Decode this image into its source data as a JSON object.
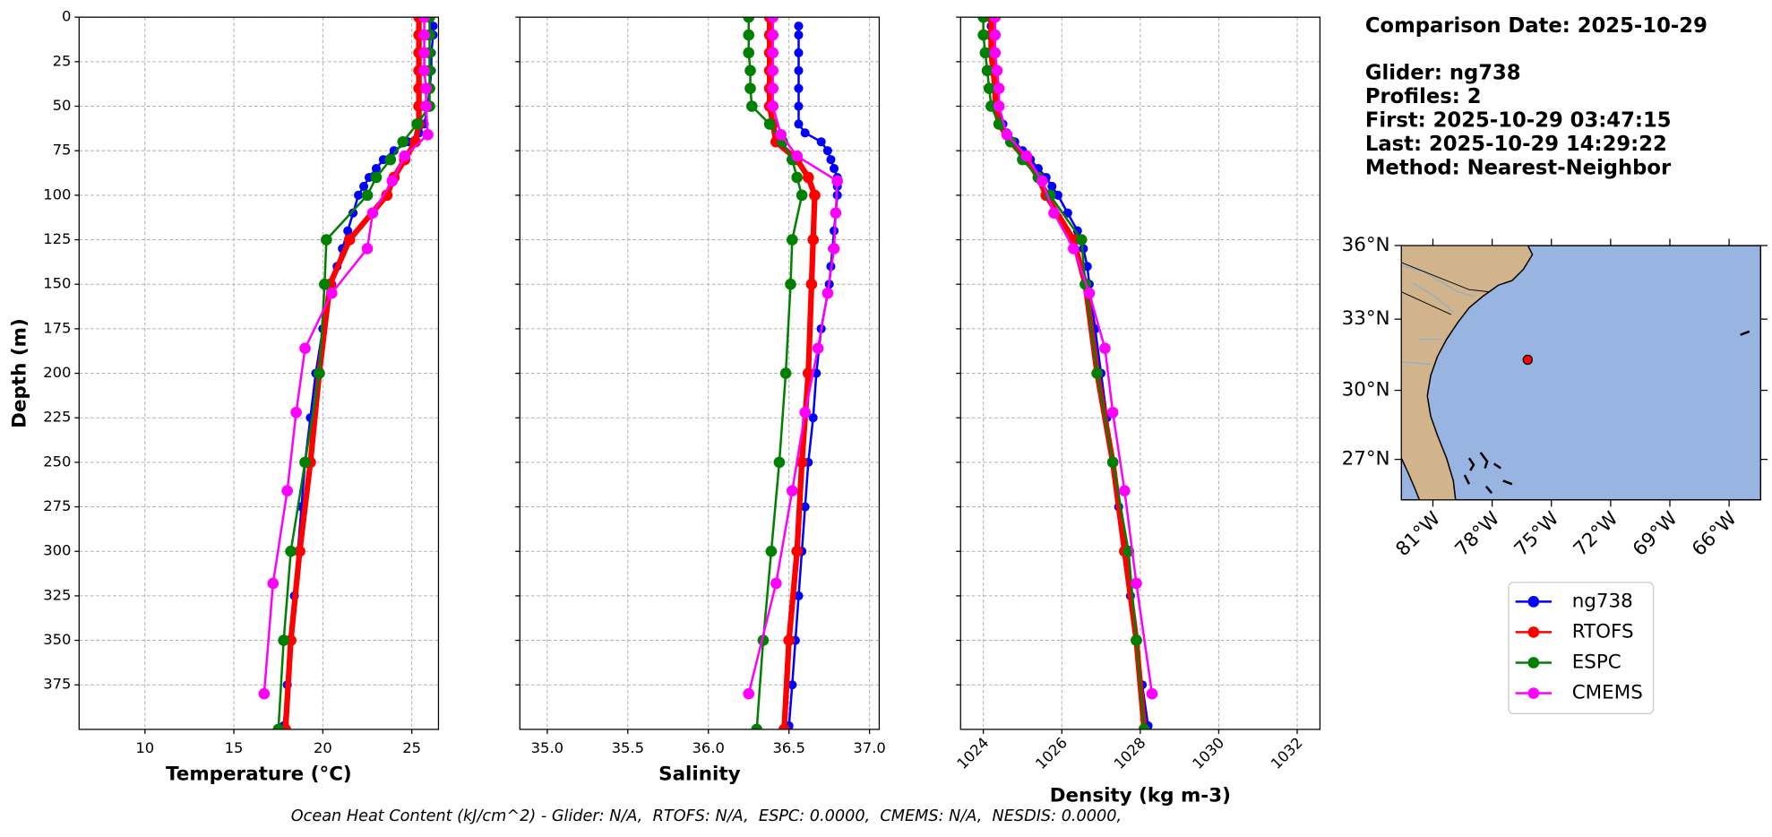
{
  "info": [
    "Comparison Date: 2025-10-29",
    "Glider: ng738",
    "Profiles: 2",
    "First: 2025-10-29 03:47:15",
    "Last: 2025-10-29 14:29:22",
    "Method: Nearest-Neighbor"
  ],
  "footer": "Ocean Heat Content (kJ/cm^2) - Glider: N/A,  RTOFS: N/A,  ESPC: 0.0000,  CMEMS: N/A,  NESDIS: 0.0000,",
  "chart_data": [
    {
      "type": "line",
      "xlabel": "Temperature (°C)",
      "ylabel": "Depth (m)",
      "xlim": [
        6.3,
        26.5
      ],
      "xticks": [
        10,
        15,
        20,
        25
      ],
      "ylim": [
        0,
        400
      ],
      "y_inverted": true,
      "yticks": [
        0,
        25,
        50,
        75,
        100,
        125,
        150,
        175,
        200,
        225,
        250,
        275,
        300,
        325,
        350,
        375
      ],
      "ytick_labels": true,
      "grid": true,
      "series": [
        {
          "name": "ng738",
          "color": "#0000ff",
          "y": [
            5,
            10,
            20,
            30,
            40,
            50,
            60,
            65,
            70,
            75,
            80,
            85,
            90,
            95,
            100,
            110,
            120,
            130,
            140,
            150,
            175,
            200,
            225,
            250,
            275,
            300,
            325,
            350,
            375,
            398
          ],
          "x": [
            26.2,
            26.2,
            26.1,
            26.1,
            26.0,
            25.9,
            25.7,
            25.4,
            24.8,
            24.0,
            23.4,
            23.0,
            22.6,
            22.3,
            22.0,
            21.7,
            21.4,
            21.1,
            20.8,
            20.5,
            20.0,
            19.6,
            19.3,
            19.0,
            18.8,
            18.6,
            18.4,
            18.2,
            18.0,
            17.8
          ]
        },
        {
          "name": "RTOFS",
          "color": "#ff0000",
          "y": [
            0,
            10,
            20,
            30,
            40,
            50,
            60,
            70,
            80,
            90,
            100,
            125,
            150,
            200,
            250,
            300,
            350,
            400
          ],
          "x": [
            25.4,
            25.4,
            25.4,
            25.4,
            25.4,
            25.4,
            25.4,
            25.2,
            24.6,
            24.0,
            23.6,
            21.5,
            20.4,
            19.8,
            19.3,
            18.7,
            18.2,
            17.9
          ]
        },
        {
          "name": "ESPC",
          "color": "#008000",
          "y": [
            0,
            10,
            20,
            30,
            40,
            50,
            60,
            70,
            80,
            90,
            100,
            125,
            150,
            200,
            250,
            300,
            350,
            400
          ],
          "x": [
            26.0,
            26.0,
            26.0,
            26.0,
            26.0,
            26.0,
            25.3,
            24.5,
            23.8,
            23.0,
            22.5,
            20.2,
            20.1,
            19.8,
            19.0,
            18.2,
            17.8,
            17.5
          ]
        },
        {
          "name": "CMEMS",
          "color": "#ff00ff",
          "y": [
            0,
            10,
            20,
            30,
            40,
            50,
            66,
            78,
            92,
            110,
            130,
            155,
            186,
            222,
            266,
            318,
            380
          ],
          "x": [
            25.7,
            25.7,
            25.7,
            25.7,
            25.8,
            25.8,
            25.9,
            24.6,
            23.9,
            22.8,
            22.5,
            20.5,
            19.0,
            18.5,
            18.0,
            17.2,
            16.7
          ]
        }
      ]
    },
    {
      "type": "line",
      "xlabel": "Salinity",
      "xlim": [
        34.83,
        37.06
      ],
      "xticks": [
        {
          "value": 35,
          "label": "35.0"
        },
        35.5,
        {
          "value": 36,
          "label": "36.0"
        },
        36.5,
        {
          "value": 37,
          "label": "37.0"
        }
      ],
      "ylim": [
        0,
        400
      ],
      "y_inverted": true,
      "yticks": [
        0,
        25,
        50,
        75,
        100,
        125,
        150,
        175,
        200,
        225,
        250,
        275,
        300,
        325,
        350,
        375
      ],
      "ytick_labels": false,
      "grid": true,
      "series": [
        {
          "name": "ng738",
          "color": "#0000ff",
          "y": [
            5,
            10,
            20,
            30,
            40,
            50,
            60,
            65,
            70,
            75,
            80,
            85,
            90,
            95,
            100,
            110,
            120,
            130,
            140,
            150,
            175,
            200,
            225,
            250,
            275,
            300,
            325,
            350,
            375,
            398
          ],
          "x": [
            36.56,
            36.56,
            36.56,
            36.56,
            36.56,
            36.56,
            36.56,
            36.6,
            36.7,
            36.74,
            36.76,
            36.78,
            36.8,
            36.8,
            36.8,
            36.79,
            36.78,
            36.77,
            36.76,
            36.75,
            36.7,
            36.67,
            36.65,
            36.62,
            36.6,
            36.58,
            36.56,
            36.54,
            36.52,
            36.5
          ]
        },
        {
          "name": "RTOFS",
          "color": "#ff0000",
          "y": [
            0,
            10,
            20,
            30,
            40,
            50,
            60,
            70,
            80,
            90,
            100,
            125,
            150,
            200,
            250,
            300,
            350,
            400
          ],
          "x": [
            36.38,
            36.38,
            36.38,
            36.38,
            36.38,
            36.38,
            36.4,
            36.42,
            36.55,
            36.62,
            36.66,
            36.65,
            36.64,
            36.62,
            36.58,
            36.55,
            36.5,
            36.47
          ]
        },
        {
          "name": "ESPC",
          "color": "#008000",
          "y": [
            0,
            10,
            20,
            30,
            40,
            50,
            60,
            70,
            80,
            90,
            100,
            125,
            150,
            200,
            250,
            300,
            350,
            400
          ],
          "x": [
            36.25,
            36.25,
            36.25,
            36.26,
            36.26,
            36.27,
            36.38,
            36.46,
            36.52,
            36.55,
            36.58,
            36.52,
            36.51,
            36.48,
            36.44,
            36.39,
            36.34,
            36.3
          ]
        },
        {
          "name": "CMEMS",
          "color": "#ff00ff",
          "y": [
            0,
            10,
            20,
            30,
            40,
            50,
            66,
            78,
            92,
            110,
            130,
            155,
            186,
            222,
            266,
            318,
            380
          ],
          "x": [
            36.4,
            36.4,
            36.4,
            36.4,
            36.4,
            36.4,
            36.45,
            36.55,
            36.8,
            36.79,
            36.78,
            36.74,
            36.68,
            36.6,
            36.52,
            36.42,
            36.25
          ]
        }
      ]
    },
    {
      "type": "line",
      "xlabel": "Density (kg m-3)",
      "xlim": [
        1023.42,
        1032.58
      ],
      "xticks": [
        1024,
        1026,
        1028,
        1030,
        1032
      ],
      "xtick_rotation": -45,
      "ylim": [
        0,
        400
      ],
      "y_inverted": true,
      "yticks": [
        0,
        25,
        50,
        75,
        100,
        125,
        150,
        175,
        200,
        225,
        250,
        275,
        300,
        325,
        350,
        375
      ],
      "ytick_labels": false,
      "grid": true,
      "series": [
        {
          "name": "ng738",
          "color": "#0000ff",
          "y": [
            5,
            10,
            20,
            30,
            40,
            50,
            60,
            65,
            70,
            75,
            80,
            85,
            90,
            95,
            100,
            110,
            120,
            130,
            140,
            150,
            175,
            200,
            225,
            250,
            275,
            300,
            325,
            350,
            375,
            398
          ],
          "x": [
            1024.2,
            1024.2,
            1024.25,
            1024.3,
            1024.35,
            1024.4,
            1024.5,
            1024.6,
            1024.8,
            1025.0,
            1025.2,
            1025.4,
            1025.6,
            1025.75,
            1025.9,
            1026.15,
            1026.4,
            1026.55,
            1026.65,
            1026.7,
            1026.85,
            1027.0,
            1027.15,
            1027.3,
            1027.45,
            1027.6,
            1027.75,
            1027.9,
            1028.05,
            1028.2
          ]
        },
        {
          "name": "RTOFS",
          "color": "#ff0000",
          "y": [
            0,
            10,
            20,
            30,
            40,
            50,
            60,
            70,
            80,
            90,
            100,
            125,
            150,
            200,
            250,
            300,
            350,
            400
          ],
          "x": [
            1024.2,
            1024.2,
            1024.2,
            1024.25,
            1024.3,
            1024.3,
            1024.4,
            1024.7,
            1025.1,
            1025.4,
            1025.6,
            1026.3,
            1026.6,
            1026.9,
            1027.3,
            1027.6,
            1027.9,
            1028.1
          ]
        },
        {
          "name": "ESPC",
          "color": "#008000",
          "y": [
            0,
            10,
            20,
            30,
            40,
            50,
            60,
            70,
            80,
            90,
            100,
            125,
            150,
            200,
            250,
            300,
            350,
            400
          ],
          "x": [
            1024.0,
            1024.0,
            1024.05,
            1024.1,
            1024.15,
            1024.2,
            1024.4,
            1024.7,
            1025.0,
            1025.4,
            1025.7,
            1026.5,
            1026.6,
            1026.9,
            1027.3,
            1027.7,
            1027.9,
            1028.1
          ]
        },
        {
          "name": "CMEMS",
          "color": "#ff00ff",
          "y": [
            0,
            10,
            20,
            30,
            40,
            50,
            66,
            78,
            92,
            110,
            130,
            155,
            186,
            222,
            266,
            318,
            380
          ],
          "x": [
            1024.3,
            1024.3,
            1024.3,
            1024.35,
            1024.4,
            1024.4,
            1024.6,
            1025.1,
            1025.5,
            1025.8,
            1026.3,
            1026.7,
            1027.1,
            1027.3,
            1027.6,
            1027.9,
            1028.3
          ]
        }
      ]
    },
    {
      "type": "map",
      "xlim": [
        -82.6,
        -64.4
      ],
      "ylim": [
        25.2,
        36.0
      ],
      "mercator": true,
      "xticks": [
        {
          "value": -81,
          "label": "81°W"
        },
        {
          "value": -78,
          "label": "78°W"
        },
        {
          "value": -75,
          "label": "75°W"
        },
        {
          "value": -72,
          "label": "72°W"
        },
        {
          "value": -69,
          "label": "69°W"
        },
        {
          "value": -66,
          "label": "66°W"
        }
      ],
      "yticks": [
        {
          "value": 27,
          "label": "27°N"
        },
        {
          "value": 30,
          "label": "30°N"
        },
        {
          "value": 33,
          "label": "33°N"
        },
        {
          "value": 36,
          "label": "36°N"
        }
      ],
      "point": {
        "x": -76.2,
        "y": 31.3,
        "color": "#ff0000"
      },
      "legend": "below"
    }
  ]
}
